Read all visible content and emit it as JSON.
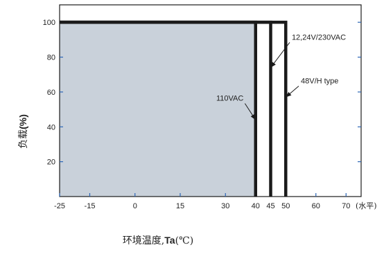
{
  "chart_data": {
    "type": "line",
    "title": "",
    "xlabel": "环境温度,Ta(℃)",
    "xlabel_parts": {
      "main": "环境温度,",
      "bold": "Ta",
      "unit": "(℃)"
    },
    "ylabel": "负载(%)",
    "ylabel_parts": {
      "main": "负载",
      "bold": "(%)"
    },
    "x_unit_note": "(水平)",
    "xlim": [
      -25,
      75
    ],
    "ylim": [
      0,
      110
    ],
    "x_ticks": [
      -25,
      -15,
      0,
      15,
      30,
      40,
      45,
      50,
      60,
      70
    ],
    "x_tick_labels": [
      "-25",
      "-15",
      "0",
      "15",
      "30",
      "40",
      "45",
      "50",
      "60",
      "70"
    ],
    "y_ticks": [
      20,
      40,
      60,
      80,
      100
    ],
    "y_tick_labels": [
      "20",
      "40",
      "60",
      "80",
      "100"
    ],
    "grid": false,
    "shaded_region": {
      "x": [
        -25,
        40
      ],
      "y": [
        0,
        100
      ],
      "color": "#c9d1da"
    },
    "series": [
      {
        "name": "110VAC",
        "x": [
          -25,
          40,
          40
        ],
        "y": [
          100,
          100,
          0
        ]
      },
      {
        "name": "12,24V/230VAC",
        "x": [
          -25,
          45,
          45
        ],
        "y": [
          100,
          100,
          0
        ]
      },
      {
        "name": "48V/H type",
        "x": [
          -25,
          50,
          50
        ],
        "y": [
          100,
          100,
          0
        ]
      }
    ],
    "annotations": [
      {
        "text": "110VAC",
        "series": "110VAC",
        "pointer": [
          40,
          44
        ],
        "label_pos": [
          36,
          55
        ],
        "anchor": "end"
      },
      {
        "text": "12,24V/230VAC",
        "series": "12,24V/230VAC",
        "pointer": [
          45,
          74
        ],
        "label_pos": [
          52,
          90
        ],
        "anchor": "start"
      },
      {
        "text": "48V/H type",
        "series": "48V/H type",
        "pointer": [
          50,
          57
        ],
        "label_pos": [
          55,
          65
        ],
        "anchor": "start"
      }
    ],
    "colors": {
      "line": "#1a1a1a",
      "axis_tick": "#2a64b4",
      "frame": "#1a1a1a"
    }
  }
}
